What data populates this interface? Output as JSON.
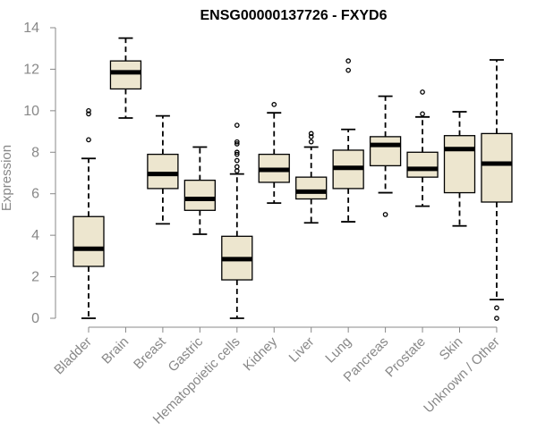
{
  "chart_data": {
    "type": "boxplot",
    "title": "ENSG00000137726 - FXYD6",
    "xlabel": "",
    "ylabel": "Expression",
    "ylim": [
      0,
      14
    ],
    "yticks": [
      0,
      2,
      4,
      6,
      8,
      10,
      12,
      14
    ],
    "box_color": "#ede6cf",
    "categories": [
      "Bladder",
      "Brain",
      "Breast",
      "Gastric",
      "Hematopoietic cells",
      "Kidney",
      "Liver",
      "Lung",
      "Pancreas",
      "Prostate",
      "Skin",
      "Unknown / Other"
    ],
    "boxes": [
      {
        "min": 0.0,
        "q1": 2.5,
        "median": 3.35,
        "q3": 4.9,
        "max": 7.7,
        "outliers": [
          8.6,
          9.85,
          10.0
        ]
      },
      {
        "min": 9.65,
        "q1": 11.05,
        "median": 11.85,
        "q3": 12.4,
        "max": 13.5,
        "outliers": []
      },
      {
        "min": 4.55,
        "q1": 6.25,
        "median": 6.95,
        "q3": 7.9,
        "max": 9.75,
        "outliers": []
      },
      {
        "min": 4.05,
        "q1": 5.2,
        "median": 5.75,
        "q3": 6.65,
        "max": 8.25,
        "outliers": []
      },
      {
        "min": 0.0,
        "q1": 1.85,
        "median": 2.85,
        "q3": 3.95,
        "max": 6.95,
        "outliers": [
          7.1,
          7.3,
          7.6,
          7.9,
          8.0,
          8.4,
          8.5,
          9.3
        ]
      },
      {
        "min": 5.55,
        "q1": 6.55,
        "median": 7.15,
        "q3": 7.9,
        "max": 9.9,
        "outliers": [
          10.3
        ]
      },
      {
        "min": 4.6,
        "q1": 5.75,
        "median": 6.1,
        "q3": 6.8,
        "max": 8.25,
        "outliers": [
          8.5,
          8.75,
          8.9
        ]
      },
      {
        "min": 4.65,
        "q1": 6.25,
        "median": 7.25,
        "q3": 8.1,
        "max": 9.1,
        "outliers": [
          11.95,
          12.4
        ]
      },
      {
        "min": 6.05,
        "q1": 7.35,
        "median": 8.35,
        "q3": 8.75,
        "max": 10.7,
        "outliers": [
          5.0
        ]
      },
      {
        "min": 5.4,
        "q1": 6.8,
        "median": 7.2,
        "q3": 8.0,
        "max": 9.7,
        "outliers": [
          9.85,
          10.9
        ]
      },
      {
        "min": 4.45,
        "q1": 6.05,
        "median": 8.15,
        "q3": 8.8,
        "max": 9.95,
        "outliers": []
      },
      {
        "min": 0.9,
        "q1": 5.6,
        "median": 7.45,
        "q3": 8.9,
        "max": 12.45,
        "outliers": [
          0.0,
          0.5
        ]
      }
    ]
  }
}
